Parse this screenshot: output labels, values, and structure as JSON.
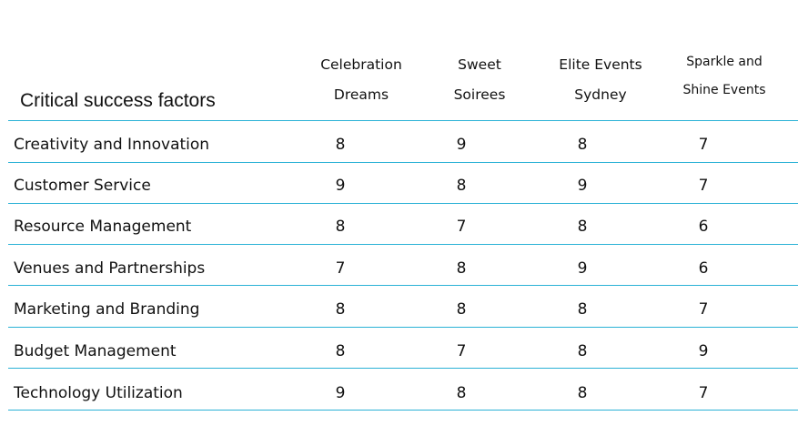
{
  "table": {
    "title": "Critical success factors",
    "columns": [
      {
        "line1": "Celebration",
        "line2": "Dreams"
      },
      {
        "line1": "Sweet",
        "line2": "Soirees"
      },
      {
        "line1": "Elite Events",
        "line2": "Sydney"
      },
      {
        "line1": "Sparkle and",
        "line2": "Shine Events"
      }
    ],
    "rows": [
      {
        "label": "Creativity and Innovation",
        "values": [
          "8",
          "9",
          "8",
          "7"
        ]
      },
      {
        "label": "Customer Service",
        "values": [
          "9",
          "8",
          "9",
          "7"
        ]
      },
      {
        "label": "Resource Management",
        "values": [
          "8",
          "7",
          "8",
          "6"
        ]
      },
      {
        "label": "Venues and Partnerships",
        "values": [
          "7",
          "8",
          "9",
          "6"
        ]
      },
      {
        "label": "Marketing and Branding",
        "values": [
          "8",
          "8",
          "8",
          "7"
        ]
      },
      {
        "label": "Budget Management",
        "values": [
          "8",
          "7",
          "8",
          "9"
        ]
      },
      {
        "label": "Technology Utilization",
        "values": [
          "9",
          "8",
          "8",
          "7"
        ]
      }
    ],
    "rule_color": "#2bb2d6"
  }
}
